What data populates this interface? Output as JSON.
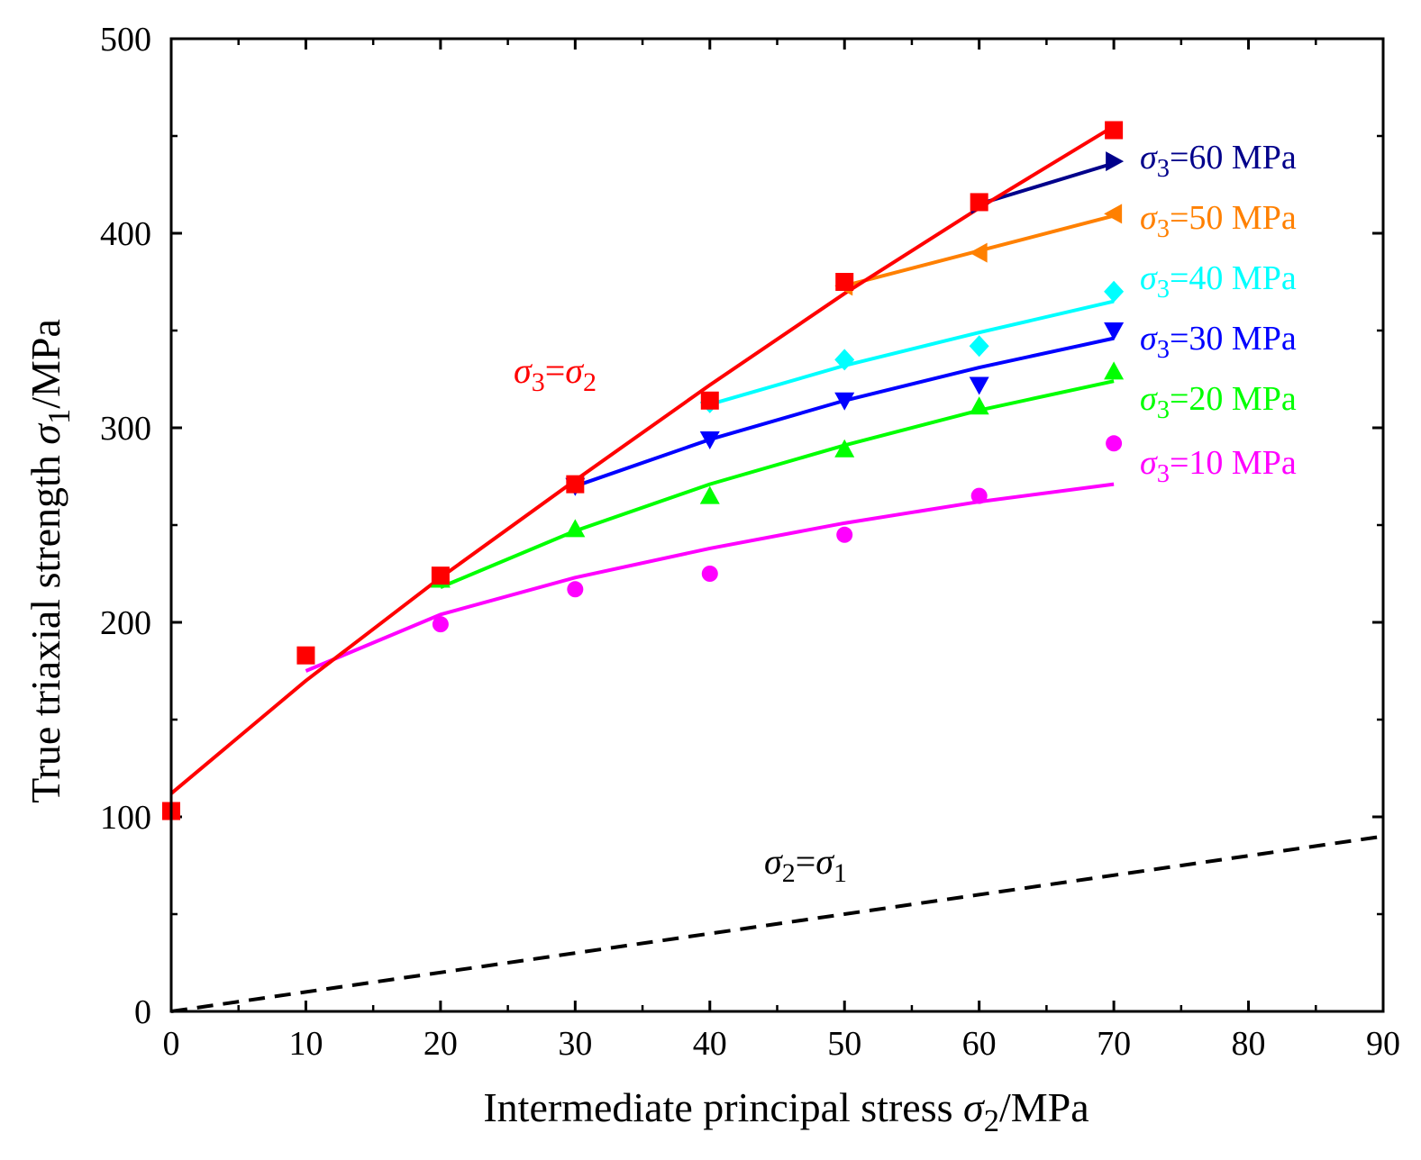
{
  "chart_data": {
    "type": "scatter",
    "xlabel_parts": [
      "Intermediate principal stress ",
      "σ",
      "2",
      "/MPa"
    ],
    "ylabel_parts": [
      "True triaxial strength ",
      "σ",
      "1",
      "/MPa"
    ],
    "xlim": [
      0,
      90
    ],
    "ylim": [
      0,
      500
    ],
    "x_ticks": [
      0,
      10,
      20,
      30,
      40,
      50,
      60,
      70,
      80,
      90
    ],
    "y_ticks": [
      0,
      100,
      200,
      300,
      400,
      500
    ],
    "grid": false,
    "series": [
      {
        "key": "eq",
        "color": "#ff0000",
        "marker": "square",
        "label_parts": [
          "σ",
          "3",
          "=",
          "σ",
          "2"
        ],
        "points": [
          [
            0,
            103
          ],
          [
            10,
            183
          ],
          [
            20,
            224
          ],
          [
            30,
            271
          ],
          [
            40,
            314
          ],
          [
            50,
            375
          ],
          [
            60,
            416
          ],
          [
            70,
            453
          ]
        ],
        "fit": [
          [
            0,
            112
          ],
          [
            10,
            170
          ],
          [
            20,
            223
          ],
          [
            30,
            273
          ],
          [
            40,
            322
          ],
          [
            50,
            369
          ],
          [
            60,
            413
          ],
          [
            70,
            455
          ]
        ]
      },
      {
        "key": "s60",
        "color": "#00008b",
        "marker": "triangle-right",
        "label_parts": [
          "σ",
          "3",
          "=60 MPa"
        ],
        "points": [
          [
            60,
            415
          ],
          [
            70,
            437
          ]
        ],
        "fit": [
          [
            60,
            415
          ],
          [
            70,
            436
          ]
        ]
      },
      {
        "key": "s50",
        "color": "#ff8000",
        "marker": "triangle-left",
        "label_parts": [
          "σ",
          "3",
          "=50 MPa"
        ],
        "points": [
          [
            50,
            373
          ],
          [
            60,
            390
          ],
          [
            70,
            410
          ]
        ],
        "fit": [
          [
            50,
            373
          ],
          [
            60,
            391
          ],
          [
            70,
            409
          ]
        ]
      },
      {
        "key": "s40",
        "color": "#00ffff",
        "marker": "diamond",
        "label_parts": [
          "σ",
          "3",
          "=40 MPa"
        ],
        "points": [
          [
            40,
            313
          ],
          [
            50,
            335
          ],
          [
            60,
            342
          ],
          [
            70,
            370
          ]
        ],
        "fit": [
          [
            40,
            312
          ],
          [
            50,
            332
          ],
          [
            60,
            349
          ],
          [
            70,
            365
          ]
        ]
      },
      {
        "key": "s30",
        "color": "#0000ff",
        "marker": "triangle-down",
        "label_parts": [
          "σ",
          "3",
          "=30 MPa"
        ],
        "points": [
          [
            30,
            270
          ],
          [
            40,
            294
          ],
          [
            50,
            314
          ],
          [
            60,
            322
          ],
          [
            70,
            350
          ]
        ],
        "fit": [
          [
            30,
            270
          ],
          [
            40,
            294
          ],
          [
            50,
            314
          ],
          [
            60,
            331
          ],
          [
            70,
            346
          ]
        ]
      },
      {
        "key": "s20",
        "color": "#00ff00",
        "marker": "triangle-up",
        "label_parts": [
          "σ",
          "3",
          "=20 MPa"
        ],
        "points": [
          [
            20,
            222
          ],
          [
            30,
            248
          ],
          [
            40,
            265
          ],
          [
            50,
            289
          ],
          [
            60,
            311
          ],
          [
            70,
            329
          ]
        ],
        "fit": [
          [
            20,
            218
          ],
          [
            30,
            247
          ],
          [
            40,
            271
          ],
          [
            50,
            291
          ],
          [
            60,
            309
          ],
          [
            70,
            324
          ]
        ]
      },
      {
        "key": "s10",
        "color": "#ff00ff",
        "marker": "circle",
        "label_parts": [
          "σ",
          "3",
          "=10 MPa"
        ],
        "points": [
          [
            20,
            199
          ],
          [
            30,
            217
          ],
          [
            40,
            225
          ],
          [
            50,
            245
          ],
          [
            60,
            265
          ],
          [
            70,
            292
          ]
        ],
        "fit": [
          [
            10,
            175
          ],
          [
            20,
            204
          ],
          [
            30,
            223
          ],
          [
            40,
            238
          ],
          [
            50,
            251
          ],
          [
            60,
            262
          ],
          [
            70,
            271
          ]
        ]
      }
    ],
    "reference_line": {
      "label_parts": [
        "σ",
        "2",
        "=",
        "σ",
        "1"
      ],
      "color": "#000000",
      "points": [
        [
          0,
          0
        ],
        [
          90,
          90
        ]
      ]
    }
  }
}
